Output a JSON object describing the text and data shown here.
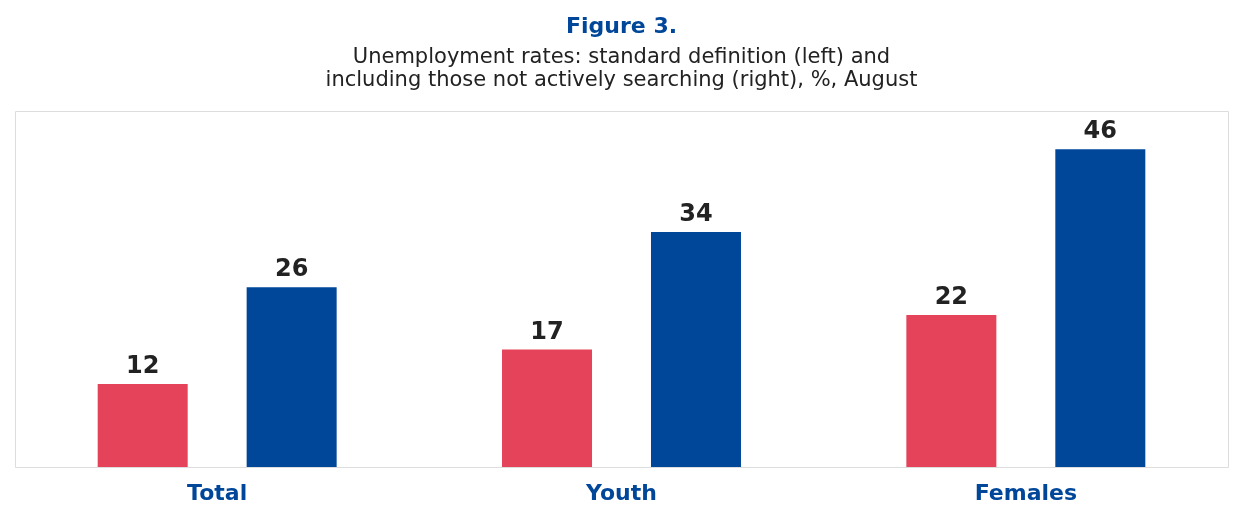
{
  "chart_data": {
    "type": "bar",
    "title": "Figure 3.",
    "subtitle": [
      "Unemployment rates: standard definition (left) and",
      "including those not actively searching (right), %, August"
    ],
    "categories": [
      "Total",
      "Youth",
      "Females"
    ],
    "series": [
      {
        "color": "#e4435a",
        "values": [
          12,
          17,
          22
        ]
      },
      {
        "color": "#00479a",
        "values": [
          26,
          34,
          46
        ]
      }
    ],
    "data_labels": true,
    "legend": false,
    "grid": false
  }
}
